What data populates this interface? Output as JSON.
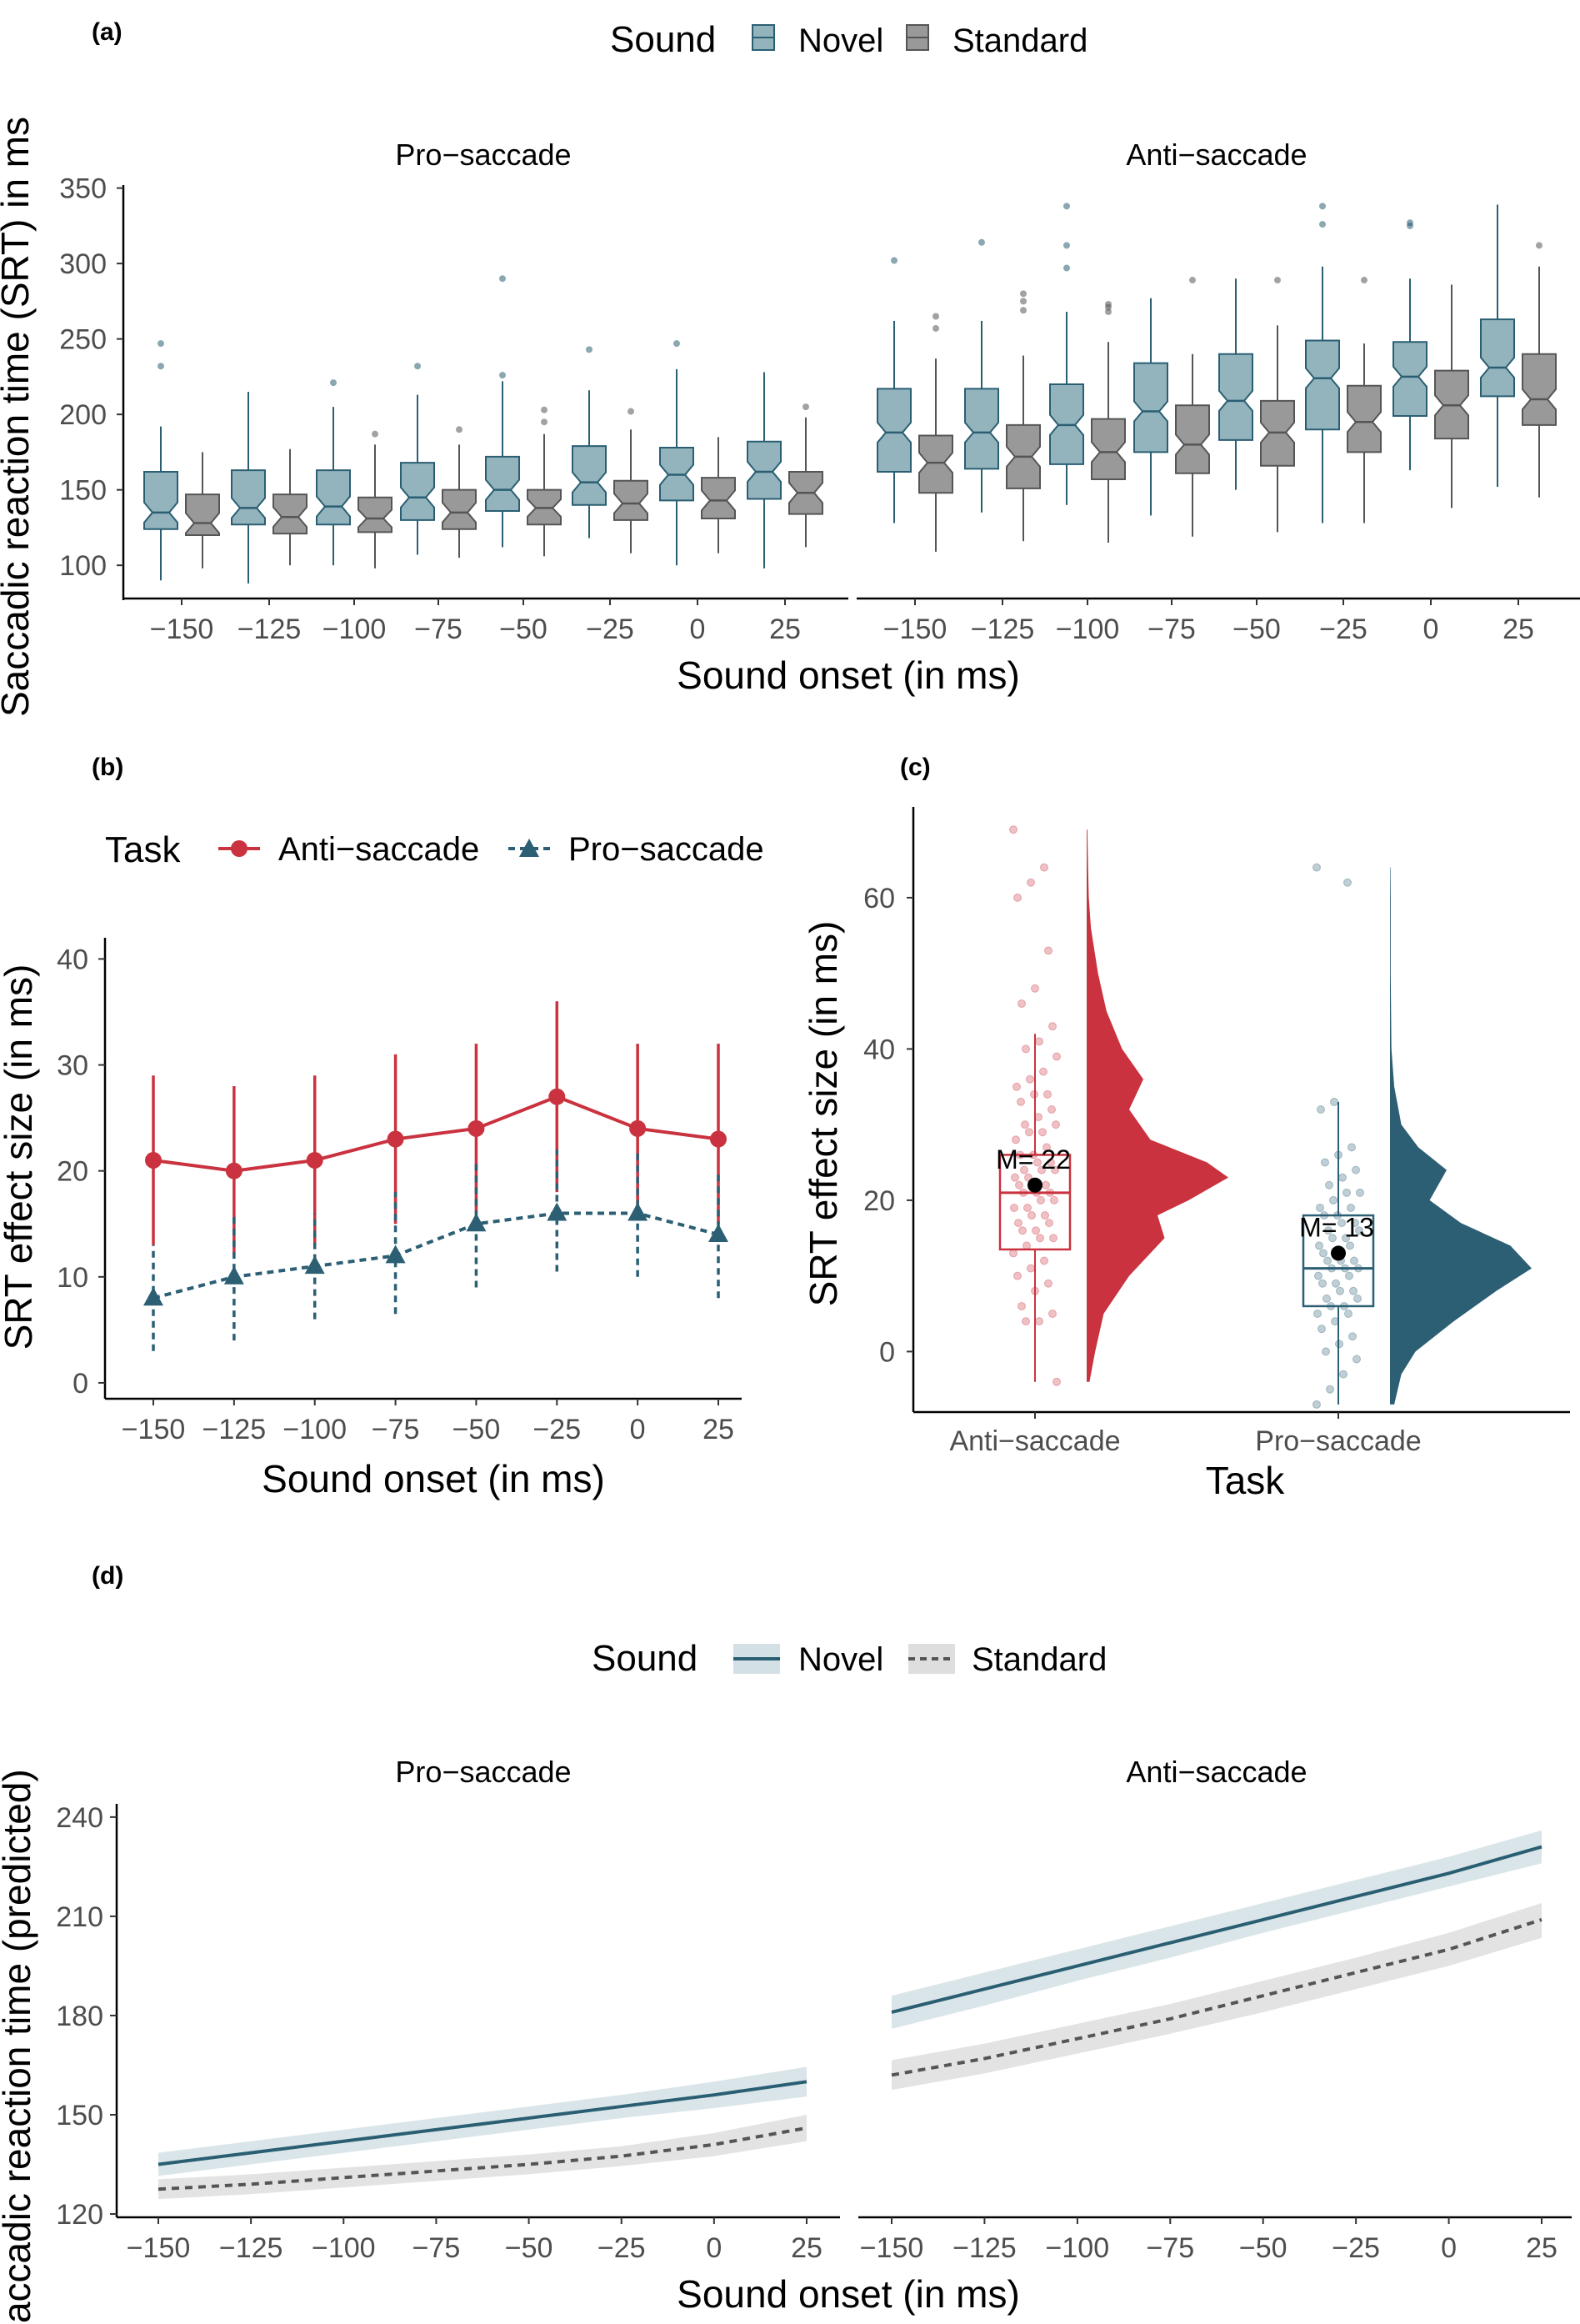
{
  "colors": {
    "novel_fill": "#93b3bd",
    "novel_line": "#2a5f73",
    "standard_fill": "#999999",
    "standard_line": "#555555",
    "anti": "#c9323e",
    "pro": "#2c5f74",
    "band_novel": "#d3e0e6",
    "band_standard": "#dedede"
  },
  "chart_data": [
    {
      "panel_label": "(a)",
      "type": "box",
      "legend": {
        "title": "Sound",
        "entries": [
          "Novel",
          "Standard"
        ],
        "placement": "top"
      },
      "facets": [
        "Pro−saccade",
        "Anti−saccade"
      ],
      "categories": [
        "−150",
        "−125",
        "−100",
        "−75",
        "−50",
        "−25",
        "0",
        "25"
      ],
      "x_values": [
        -150,
        -125,
        -100,
        -75,
        -50,
        -25,
        0,
        25
      ],
      "xlabel": "Sound onset (in ms)",
      "ylabel": "Saccadic reaction time (SRT) in ms",
      "ylim": [
        78,
        352
      ],
      "yticks": [
        100,
        150,
        200,
        250,
        300,
        350
      ],
      "series": [
        {
          "facet": "Pro−saccade",
          "name": "Novel",
          "boxes": [
            {
              "min": 90,
              "q1": 124,
              "median": 135,
              "q3": 162,
              "max": 192,
              "outliers": [
                232,
                247
              ]
            },
            {
              "min": 88,
              "q1": 127,
              "median": 138,
              "q3": 163,
              "max": 215,
              "outliers": []
            },
            {
              "min": 100,
              "q1": 127,
              "median": 139,
              "q3": 163,
              "max": 205,
              "outliers": [
                221
              ]
            },
            {
              "min": 107,
              "q1": 130,
              "median": 145,
              "q3": 168,
              "max": 213,
              "outliers": [
                232
              ]
            },
            {
              "min": 112,
              "q1": 136,
              "median": 150,
              "q3": 172,
              "max": 222,
              "outliers": [
                226,
                290
              ]
            },
            {
              "min": 118,
              "q1": 140,
              "median": 155,
              "q3": 179,
              "max": 216,
              "outliers": [
                243
              ]
            },
            {
              "min": 100,
              "q1": 143,
              "median": 160,
              "q3": 178,
              "max": 230,
              "outliers": [
                247
              ]
            },
            {
              "min": 98,
              "q1": 144,
              "median": 162,
              "q3": 182,
              "max": 228,
              "outliers": []
            }
          ]
        },
        {
          "facet": "Pro−saccade",
          "name": "Standard",
          "boxes": [
            {
              "min": 98,
              "q1": 120,
              "median": 128,
              "q3": 147,
              "max": 175,
              "outliers": []
            },
            {
              "min": 100,
              "q1": 121,
              "median": 132,
              "q3": 147,
              "max": 177,
              "outliers": []
            },
            {
              "min": 98,
              "q1": 122,
              "median": 131,
              "q3": 145,
              "max": 180,
              "outliers": [
                187
              ]
            },
            {
              "min": 105,
              "q1": 124,
              "median": 135,
              "q3": 150,
              "max": 180,
              "outliers": [
                190
              ]
            },
            {
              "min": 106,
              "q1": 127,
              "median": 138,
              "q3": 150,
              "max": 187,
              "outliers": [
                195,
                203
              ]
            },
            {
              "min": 108,
              "q1": 130,
              "median": 141,
              "q3": 156,
              "max": 190,
              "outliers": [
                202
              ]
            },
            {
              "min": 108,
              "q1": 131,
              "median": 143,
              "q3": 158,
              "max": 185,
              "outliers": []
            },
            {
              "min": 112,
              "q1": 134,
              "median": 148,
              "q3": 162,
              "max": 198,
              "outliers": [
                205
              ]
            }
          ]
        },
        {
          "facet": "Anti−saccade",
          "name": "Novel",
          "boxes": [
            {
              "min": 128,
              "q1": 162,
              "median": 188,
              "q3": 217,
              "max": 262,
              "outliers": [
                302
              ]
            },
            {
              "min": 135,
              "q1": 164,
              "median": 188,
              "q3": 217,
              "max": 262,
              "outliers": [
                314
              ]
            },
            {
              "min": 140,
              "q1": 167,
              "median": 193,
              "q3": 220,
              "max": 268,
              "outliers": [
                297,
                312,
                338
              ]
            },
            {
              "min": 133,
              "q1": 175,
              "median": 202,
              "q3": 234,
              "max": 277,
              "outliers": []
            },
            {
              "min": 150,
              "q1": 183,
              "median": 209,
              "q3": 240,
              "max": 290,
              "outliers": []
            },
            {
              "min": 128,
              "q1": 190,
              "median": 224,
              "q3": 249,
              "max": 298,
              "outliers": [
                326,
                338
              ]
            },
            {
              "min": 163,
              "q1": 199,
              "median": 225,
              "q3": 248,
              "max": 290,
              "outliers": [
                325,
                327
              ]
            },
            {
              "min": 152,
              "q1": 212,
              "median": 231,
              "q3": 263,
              "max": 339,
              "outliers": []
            }
          ]
        },
        {
          "facet": "Anti−saccade",
          "name": "Standard",
          "boxes": [
            {
              "min": 109,
              "q1": 148,
              "median": 168,
              "q3": 186,
              "max": 237,
              "outliers": [
                257,
                265
              ]
            },
            {
              "min": 116,
              "q1": 151,
              "median": 172,
              "q3": 193,
              "max": 239,
              "outliers": [
                269,
                275,
                280
              ]
            },
            {
              "min": 115,
              "q1": 157,
              "median": 175,
              "q3": 197,
              "max": 248,
              "outliers": [
                268,
                271,
                273
              ]
            },
            {
              "min": 119,
              "q1": 161,
              "median": 180,
              "q3": 206,
              "max": 240,
              "outliers": [
                289
              ]
            },
            {
              "min": 122,
              "q1": 166,
              "median": 188,
              "q3": 209,
              "max": 259,
              "outliers": [
                289
              ]
            },
            {
              "min": 128,
              "q1": 175,
              "median": 195,
              "q3": 219,
              "max": 247,
              "outliers": [
                289
              ]
            },
            {
              "min": 138,
              "q1": 184,
              "median": 206,
              "q3": 229,
              "max": 286,
              "outliers": []
            },
            {
              "min": 145,
              "q1": 193,
              "median": 210,
              "q3": 240,
              "max": 298,
              "outliers": [
                312
              ]
            }
          ]
        }
      ]
    },
    {
      "panel_label": "(b)",
      "type": "line",
      "legend": {
        "title": "Task",
        "entries": [
          "Anti−saccade",
          "Pro−saccade"
        ],
        "placement": "top"
      },
      "categories": [
        "−150",
        "−125",
        "−100",
        "−75",
        "−50",
        "−25",
        "0",
        "25"
      ],
      "x": [
        -150,
        -125,
        -100,
        -75,
        -50,
        -25,
        0,
        25
      ],
      "xlabel": "Sound onset (in ms)",
      "ylabel": "SRT effect size (in ms)",
      "ylim": [
        -1.5,
        42
      ],
      "yticks": [
        0,
        10,
        20,
        30,
        40
      ],
      "series": [
        {
          "name": "Anti−saccade",
          "values": [
            21,
            20,
            21,
            23,
            24,
            27,
            24,
            23
          ],
          "err_low": [
            13,
            12,
            13,
            15,
            16,
            18,
            16,
            15
          ],
          "err_high": [
            29,
            28,
            29,
            31,
            32,
            36,
            32,
            32
          ]
        },
        {
          "name": "Pro−saccade",
          "values": [
            8,
            10,
            11,
            12,
            15,
            16,
            16,
            14
          ],
          "err_low": [
            3,
            4,
            6,
            6.5,
            9,
            10.5,
            10,
            8
          ],
          "err_high": [
            13,
            16,
            16,
            18,
            21,
            22,
            22,
            20
          ]
        }
      ]
    },
    {
      "panel_label": "(c)",
      "type": "raincloud",
      "categories": [
        "Anti−saccade",
        "Pro−saccade"
      ],
      "xlabel": "Task",
      "ylabel": "SRT effect size (in ms)",
      "ylim": [
        -8,
        72
      ],
      "yticks": [
        0,
        20,
        40,
        60
      ],
      "series": [
        {
          "name": "Anti−saccade",
          "mean": 22,
          "mean_label": "M= 22",
          "median": 21,
          "q1": 13.5,
          "q3": 26,
          "whisker_low": -4,
          "whisker_high": 42,
          "points": [
            69,
            64,
            62,
            60,
            53,
            48,
            46,
            43,
            41,
            40,
            39,
            37,
            36,
            35,
            34,
            34,
            33,
            32,
            31,
            30,
            30,
            29,
            29,
            28,
            27,
            26,
            26,
            25,
            25,
            24,
            24,
            24,
            23,
            23,
            22,
            22,
            22,
            21,
            21,
            21,
            20,
            20,
            19,
            19,
            18,
            18,
            17,
            17,
            16,
            16,
            15,
            15,
            14,
            13,
            12,
            11,
            10,
            9,
            8,
            6,
            5,
            4,
            4,
            -4
          ],
          "density": [
            [
              -4,
              0.02
            ],
            [
              0,
              0.06
            ],
            [
              5,
              0.12
            ],
            [
              10,
              0.3
            ],
            [
              15,
              0.55
            ],
            [
              18,
              0.5
            ],
            [
              20,
              0.72
            ],
            [
              23,
              1.0
            ],
            [
              25,
              0.85
            ],
            [
              28,
              0.45
            ],
            [
              32,
              0.3
            ],
            [
              36,
              0.4
            ],
            [
              40,
              0.25
            ],
            [
              45,
              0.14
            ],
            [
              50,
              0.08
            ],
            [
              56,
              0.03
            ],
            [
              60,
              0.015
            ],
            [
              64,
              0.01
            ],
            [
              69,
              0.005
            ]
          ]
        },
        {
          "name": "Pro−saccade",
          "mean": 13,
          "mean_label": "M= 13",
          "median": 11,
          "q1": 6,
          "q3": 18,
          "whisker_low": -7,
          "whisker_high": 33,
          "points": [
            64,
            62,
            33,
            32,
            27,
            26,
            25,
            24,
            23,
            22,
            21,
            21,
            20,
            19,
            19,
            18,
            18,
            17,
            17,
            16,
            16,
            15,
            15,
            14,
            14,
            13,
            13,
            12,
            12,
            12,
            11,
            11,
            11,
            10,
            10,
            9,
            9,
            8,
            8,
            7,
            7,
            6,
            6,
            5,
            5,
            4,
            3,
            2,
            1,
            0,
            -1,
            -3,
            -5,
            -7
          ],
          "density": [
            [
              -7,
              0.03
            ],
            [
              -3,
              0.08
            ],
            [
              0,
              0.18
            ],
            [
              4,
              0.45
            ],
            [
              8,
              0.75
            ],
            [
              11,
              1.0
            ],
            [
              14,
              0.85
            ],
            [
              17,
              0.5
            ],
            [
              20,
              0.28
            ],
            [
              24,
              0.4
            ],
            [
              27,
              0.2
            ],
            [
              30,
              0.08
            ],
            [
              35,
              0.03
            ],
            [
              40,
              0.01
            ],
            [
              50,
              0.005
            ],
            [
              60,
              0.005
            ],
            [
              64,
              0.003
            ]
          ]
        }
      ]
    },
    {
      "panel_label": "(d)",
      "type": "line",
      "legend": {
        "title": "Sound",
        "entries": [
          "Novel",
          "Standard"
        ],
        "placement": "top"
      },
      "facets": [
        "Pro−saccade",
        "Anti−saccade"
      ],
      "x": [
        -150,
        -125,
        -100,
        -75,
        -50,
        -25,
        0,
        25
      ],
      "xticks": [
        "−150",
        "−125",
        "−100",
        "−75",
        "−50",
        "−25",
        "0",
        "25"
      ],
      "xlabel": "Sound onset (in ms)",
      "ylabel": "Saccadic reaction time (predicted)",
      "ylim": [
        119,
        244
      ],
      "yticks": [
        120,
        150,
        180,
        210,
        240
      ],
      "series": [
        {
          "facet": "Pro−saccade",
          "name": "Novel",
          "values": [
            135,
            138.5,
            142,
            145.5,
            149,
            152.5,
            156,
            160
          ],
          "lower": [
            131.5,
            135,
            138.5,
            142,
            145.5,
            149,
            152,
            155.5
          ],
          "upper": [
            138.5,
            142,
            145.5,
            149,
            152.5,
            156,
            160,
            164.5
          ]
        },
        {
          "facet": "Pro−saccade",
          "name": "Standard",
          "values": [
            127.5,
            129,
            131,
            133,
            135,
            137.5,
            141,
            146
          ],
          "lower": [
            124.5,
            126,
            128,
            130,
            132,
            134.5,
            137.5,
            142
          ],
          "upper": [
            130.5,
            132,
            134,
            136,
            138,
            140.5,
            144.5,
            150
          ]
        },
        {
          "facet": "Anti−saccade",
          "name": "Novel",
          "values": [
            181,
            188,
            195,
            202,
            209,
            216,
            223,
            231
          ],
          "lower": [
            176,
            183,
            190.5,
            197.5,
            205,
            212,
            219,
            226
          ],
          "upper": [
            186,
            193,
            200,
            207,
            214,
            221,
            228,
            236
          ]
        },
        {
          "facet": "Anti−saccade",
          "name": "Standard",
          "values": [
            162,
            167,
            173,
            179,
            186,
            193,
            200,
            209
          ],
          "lower": [
            157.5,
            162.5,
            168.5,
            174.5,
            181,
            188,
            195,
            203.5
          ],
          "upper": [
            166.5,
            171.5,
            177.5,
            183.5,
            190.5,
            197.5,
            205,
            214
          ]
        }
      ]
    }
  ]
}
